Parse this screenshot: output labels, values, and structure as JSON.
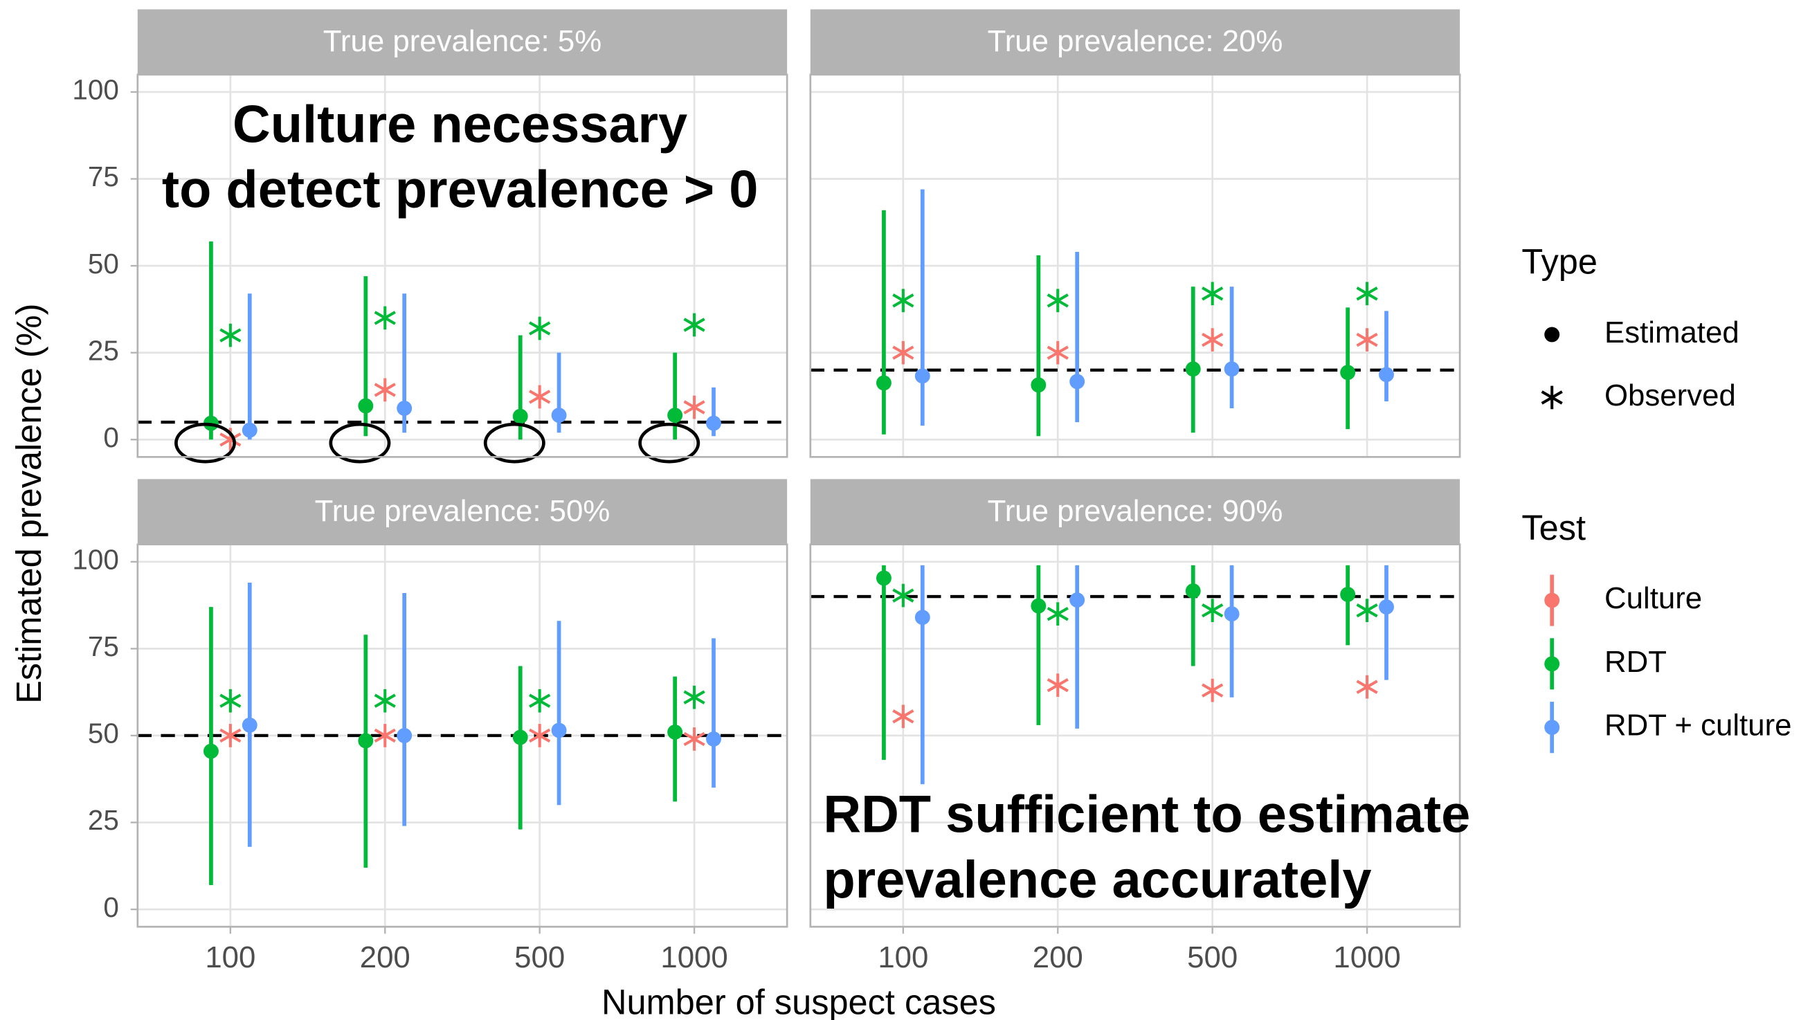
{
  "chart_data": {
    "type": "dot_errorbar",
    "xlabel": "Number of suspect cases",
    "ylabel": "Estimated prevalence (%)",
    "categories": [
      "100",
      "200",
      "500",
      "1000"
    ],
    "ylim": [
      -5,
      105
    ],
    "yticks": [
      0,
      25,
      50,
      75,
      100
    ],
    "grid": true,
    "legend_position": "right",
    "legend": {
      "type": {
        "title": "Type",
        "entries": [
          {
            "name": "Estimated",
            "marker": "dot"
          },
          {
            "name": "Observed",
            "marker": "asterisk"
          }
        ]
      },
      "test": {
        "title": "Test",
        "entries": [
          {
            "name": "Culture",
            "color": "#f8766d"
          },
          {
            "name": "RDT",
            "color": "#00ba38"
          },
          {
            "name": "RDT + culture",
            "color": "#619cff"
          }
        ]
      }
    },
    "facets": [
      {
        "title": "True prevalence: 5%",
        "reference": 5,
        "circled_estimates": "RDT",
        "annotation": [
          "Culture necessary",
          "to detect prevalence > 0"
        ],
        "series": [
          {
            "name": "Culture",
            "kind": "Observed",
            "values": [
              0,
              14.3,
              12.3,
              9.3
            ]
          },
          {
            "name": "RDT",
            "kind": "Observed",
            "values": [
              30,
              35,
              32,
              33
            ]
          },
          {
            "name": "RDT",
            "kind": "Estimated",
            "values": [
              4.7,
              9.7,
              6.7,
              7
            ],
            "lower": [
              0,
              1,
              0,
              0
            ],
            "upper": [
              57,
              47,
              30,
              25
            ]
          },
          {
            "name": "RDT + culture",
            "kind": "Estimated",
            "values": [
              2.7,
              9,
              7,
              4.7
            ],
            "lower": [
              0,
              2,
              2,
              1
            ],
            "upper": [
              42,
              42,
              25,
              15
            ]
          }
        ]
      },
      {
        "title": "True prevalence: 20%",
        "reference": 20,
        "series": [
          {
            "name": "Culture",
            "kind": "Observed",
            "values": [
              25,
              25,
              28.7,
              28.7
            ]
          },
          {
            "name": "RDT",
            "kind": "Observed",
            "values": [
              40,
              40,
              42,
              42
            ]
          },
          {
            "name": "RDT",
            "kind": "Estimated",
            "values": [
              16.3,
              15.7,
              20.3,
              19.3
            ],
            "lower": [
              1.5,
              1,
              2,
              3
            ],
            "upper": [
              66,
              53,
              44,
              38
            ]
          },
          {
            "name": "RDT + culture",
            "kind": "Estimated",
            "values": [
              18.3,
              16.7,
              20.3,
              18.7
            ],
            "lower": [
              4,
              5,
              9,
              11
            ],
            "upper": [
              72,
              54,
              44,
              37
            ]
          }
        ]
      },
      {
        "title": "True prevalence: 50%",
        "reference": 50,
        "series": [
          {
            "name": "Culture",
            "kind": "Observed",
            "values": [
              50,
              50,
              50,
              49
            ]
          },
          {
            "name": "RDT",
            "kind": "Observed",
            "values": [
              60,
              60,
              60,
              61
            ]
          },
          {
            "name": "RDT",
            "kind": "Estimated",
            "values": [
              45.5,
              48.5,
              49.5,
              51
            ],
            "lower": [
              7,
              12,
              23,
              31
            ],
            "upper": [
              87,
              79,
              70,
              67
            ]
          },
          {
            "name": "RDT + culture",
            "kind": "Estimated",
            "values": [
              53,
              50,
              51.5,
              49
            ],
            "lower": [
              18,
              24,
              30,
              35
            ],
            "upper": [
              94,
              91,
              83,
              78
            ]
          }
        ]
      },
      {
        "title": "True prevalence: 90%",
        "reference": 90,
        "annotation": [
          "RDT sufficient to estimate",
          "prevalence accurately"
        ],
        "series": [
          {
            "name": "Culture",
            "kind": "Observed",
            "values": [
              55.5,
              64.5,
              63,
              64
            ]
          },
          {
            "name": "RDT",
            "kind": "Observed",
            "values": [
              90.3,
              85,
              86,
              86
            ]
          },
          {
            "name": "RDT",
            "kind": "Estimated",
            "values": [
              95.3,
              87.3,
              91.6,
              90.6
            ],
            "lower": [
              43,
              53,
              70,
              76
            ],
            "upper": [
              99,
              99,
              99,
              99
            ]
          },
          {
            "name": "RDT + culture",
            "kind": "Estimated",
            "values": [
              84,
              89,
              85,
              87
            ],
            "lower": [
              36,
              52,
              61,
              66
            ],
            "upper": [
              99,
              99,
              99,
              99
            ]
          }
        ]
      }
    ]
  }
}
